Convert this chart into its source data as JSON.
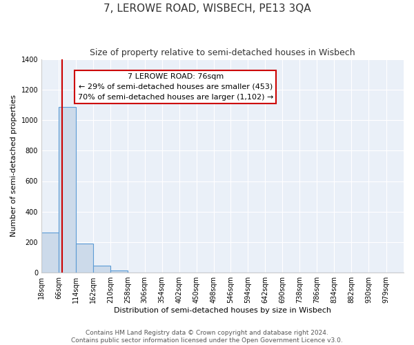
{
  "title": "7, LEROWE ROAD, WISBECH, PE13 3QA",
  "subtitle": "Size of property relative to semi-detached houses in Wisbech",
  "xlabel": "Distribution of semi-detached houses by size in Wisbech",
  "ylabel": "Number of semi-detached properties",
  "bin_labels": [
    "18sqm",
    "66sqm",
    "114sqm",
    "162sqm",
    "210sqm",
    "258sqm",
    "306sqm",
    "354sqm",
    "402sqm",
    "450sqm",
    "498sqm",
    "546sqm",
    "594sqm",
    "642sqm",
    "690sqm",
    "738sqm",
    "786sqm",
    "834sqm",
    "882sqm",
    "930sqm",
    "979sqm"
  ],
  "bin_values": [
    265,
    1085,
    193,
    48,
    13,
    0,
    0,
    0,
    0,
    0,
    0,
    0,
    0,
    0,
    0,
    0,
    0,
    0,
    0,
    0,
    0
  ],
  "bin_edges": [
    18,
    66,
    114,
    162,
    210,
    258,
    306,
    354,
    402,
    450,
    498,
    546,
    594,
    642,
    690,
    738,
    786,
    834,
    882,
    930,
    979
  ],
  "ylim": [
    0,
    1400
  ],
  "yticks": [
    0,
    200,
    400,
    600,
    800,
    1000,
    1200,
    1400
  ],
  "property_line_x": 76,
  "bar_fill_color": "#ccdaea",
  "bar_edge_color": "#5b9bd5",
  "property_line_color": "#cc0000",
  "annotation_box_color": "#ffffff",
  "annotation_box_edge_color": "#cc0000",
  "annotation_text_line1": "7 LEROWE ROAD: 76sqm",
  "annotation_text_line2": "← 29% of semi-detached houses are smaller (453)",
  "annotation_text_line3": "70% of semi-detached houses are larger (1,102) →",
  "footer_line1": "Contains HM Land Registry data © Crown copyright and database right 2024.",
  "footer_line2": "Contains public sector information licensed under the Open Government Licence v3.0.",
  "background_color": "#ffffff",
  "plot_background_color": "#eaf0f8",
  "grid_color": "#ffffff",
  "title_fontsize": 11,
  "subtitle_fontsize": 9,
  "axis_label_fontsize": 8,
  "tick_fontsize": 7,
  "annotation_fontsize": 8,
  "footer_fontsize": 6.5
}
